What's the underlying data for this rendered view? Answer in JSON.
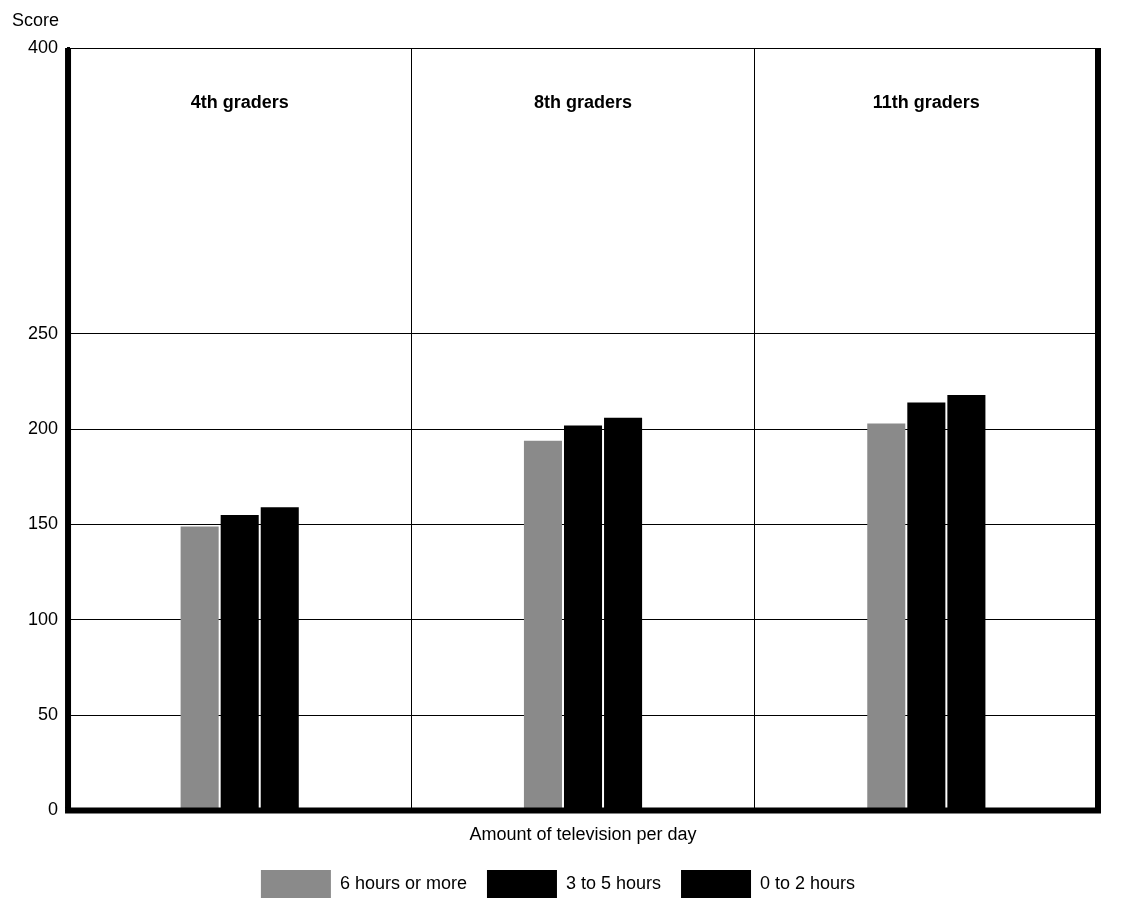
{
  "chart_data": {
    "type": "bar",
    "ylabel": "Score",
    "xlabel": "Amount of television per day",
    "categories": [
      "4th graders",
      "8th graders",
      "11th graders"
    ],
    "series": [
      {
        "name": "6 hours or more",
        "color": "#8a8a8a",
        "values": [
          149,
          194,
          203
        ]
      },
      {
        "name": "3 to 5 hours",
        "color": "#000000",
        "values": [
          155,
          202,
          214
        ]
      },
      {
        "name": "0 to 2 hours",
        "color": "#000000",
        "values": [
          159,
          206,
          218
        ]
      }
    ],
    "ylim": [
      0,
      400
    ],
    "yticks": [
      0,
      50,
      100,
      150,
      200,
      250,
      400
    ],
    "grid": true,
    "legend": "bottom"
  }
}
